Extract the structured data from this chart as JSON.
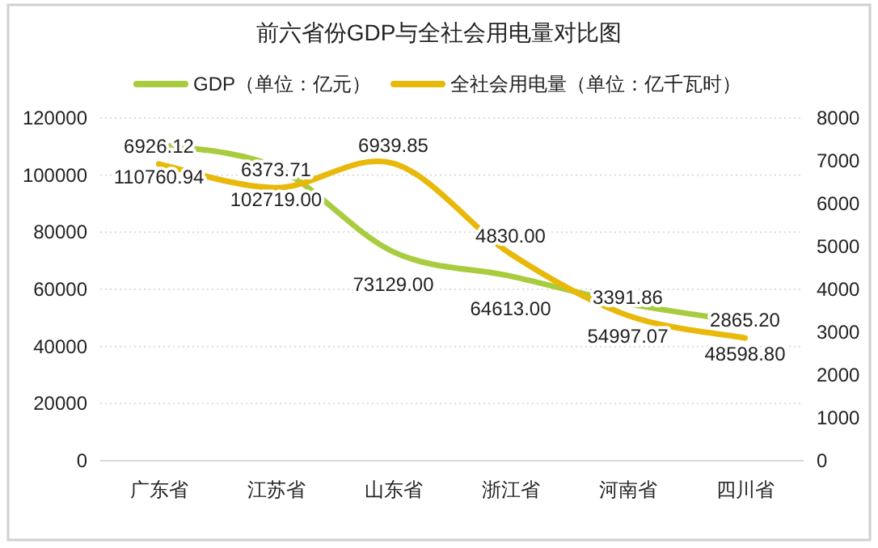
{
  "chart_data": {
    "type": "line",
    "title": "前六省份GDP与全社会用电量对比图",
    "categories": [
      "广东省",
      "江苏省",
      "山东省",
      "浙江省",
      "河南省",
      "四川省"
    ],
    "series": [
      {
        "name": "GDP（单位：亿元）",
        "color": "#a9cc3f",
        "values": [
          110760.94,
          102719.0,
          73129.0,
          64613.0,
          54997.07,
          48598.8
        ],
        "value_labels": [
          "110760.94",
          "102719.00",
          "73129.00",
          "64613.00",
          "54997.07",
          "48598.80"
        ]
      },
      {
        "name": "全社会用电量（单位：亿千瓦时）",
        "color": "#e8b90a",
        "axis": "y2",
        "values": [
          6926.12,
          6373.71,
          6939.85,
          4830.0,
          3391.86,
          2865.2
        ],
        "value_labels": [
          "6926.12",
          "6373.71",
          "6939.85",
          "4830.00",
          "3391.86",
          "2865.20"
        ]
      }
    ],
    "ylim": [
      0,
      120000
    ],
    "yticks": [
      0,
      20000,
      40000,
      60000,
      80000,
      100000,
      120000
    ],
    "y2lim": [
      0,
      8000
    ],
    "y2ticks": [
      0,
      1000,
      2000,
      3000,
      4000,
      5000,
      6000,
      7000,
      8000
    ],
    "grid": "y",
    "legend": "top",
    "marker": "none",
    "line_style": "solid"
  }
}
